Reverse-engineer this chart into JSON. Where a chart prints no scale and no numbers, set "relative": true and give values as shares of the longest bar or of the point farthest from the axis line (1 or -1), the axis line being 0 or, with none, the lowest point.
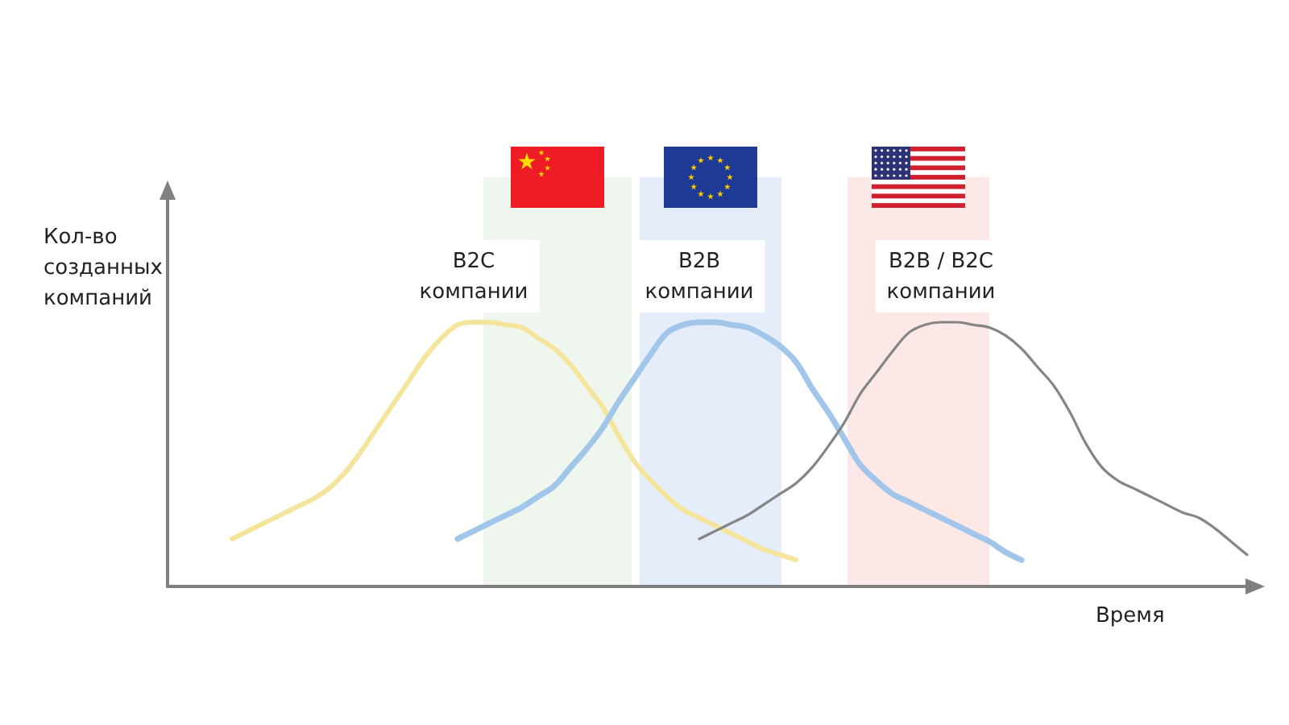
{
  "chart_data": {
    "type": "line",
    "relative": true,
    "xlabel": "Время",
    "ylabel": "Кол-во созданных компаний",
    "categories": [
      null,
      null,
      null,
      null,
      null,
      null,
      null,
      null,
      null,
      null,
      null,
      null,
      null,
      null,
      null,
      null,
      null,
      null,
      null,
      null,
      null,
      null,
      null,
      null,
      null,
      null,
      null,
      null,
      null,
      null,
      null,
      null,
      null,
      null,
      null,
      null,
      null,
      null,
      null,
      null,
      null,
      null,
      null,
      null,
      null,
      null,
      null,
      null,
      null,
      null,
      null,
      null,
      null,
      null,
      null,
      null,
      null,
      null,
      null,
      null,
      null,
      null,
      null,
      null,
      null,
      null,
      null,
      null
    ],
    "series": [
      {
        "name": "B2C компании",
        "color": "#f5e49c",
        "values": [
          null,
          null,
          null,
          null,
          0.18,
          0.21,
          0.24,
          0.27,
          0.3,
          0.33,
          0.37,
          0.43,
          0.51,
          0.6,
          0.69,
          0.78,
          0.87,
          0.94,
          0.99,
          1.0,
          1.0,
          0.99,
          0.98,
          0.94,
          0.9,
          0.84,
          0.76,
          0.68,
          0.57,
          0.47,
          0.4,
          0.34,
          0.29,
          0.26,
          0.23,
          0.2,
          0.17,
          0.14,
          0.12,
          0.1,
          null,
          null,
          null,
          null,
          null,
          null,
          null,
          null,
          null,
          null,
          null,
          null,
          null,
          null,
          null,
          null,
          null,
          null,
          null,
          null,
          null,
          null,
          null,
          null,
          null,
          null,
          null,
          null
        ]
      },
      {
        "name": "B2B компании",
        "color": "#a2c6ea",
        "values": [
          null,
          null,
          null,
          null,
          null,
          null,
          null,
          null,
          null,
          null,
          null,
          null,
          null,
          null,
          null,
          null,
          null,
          null,
          0.18,
          0.21,
          0.24,
          0.27,
          0.3,
          0.34,
          0.38,
          0.45,
          0.52,
          0.6,
          0.7,
          0.79,
          0.88,
          0.96,
          0.99,
          1.0,
          1.0,
          0.99,
          0.98,
          0.95,
          0.91,
          0.85,
          0.75,
          0.66,
          0.56,
          0.46,
          0.4,
          0.35,
          0.32,
          0.29,
          0.26,
          0.23,
          0.2,
          0.17,
          0.13,
          0.1,
          null,
          null,
          null,
          null,
          null,
          null,
          null,
          null,
          null,
          null,
          null,
          null,
          null,
          null
        ]
      },
      {
        "name": "B2B / B2C компании",
        "color": "#858585",
        "values": [
          null,
          null,
          null,
          null,
          null,
          null,
          null,
          null,
          null,
          null,
          null,
          null,
          null,
          null,
          null,
          null,
          null,
          null,
          null,
          null,
          null,
          null,
          null,
          null,
          null,
          null,
          null,
          null,
          null,
          null,
          null,
          null,
          null,
          0.18,
          0.21,
          0.24,
          0.27,
          0.31,
          0.35,
          0.39,
          0.45,
          0.53,
          0.62,
          0.73,
          0.81,
          0.89,
          0.96,
          0.99,
          1.0,
          1.0,
          0.99,
          0.98,
          0.95,
          0.9,
          0.83,
          0.76,
          0.66,
          0.54,
          0.45,
          0.4,
          0.37,
          0.34,
          0.31,
          0.28,
          0.26,
          0.22,
          0.17,
          0.12
        ]
      }
    ],
    "grid": false,
    "legend": false
  }
}
